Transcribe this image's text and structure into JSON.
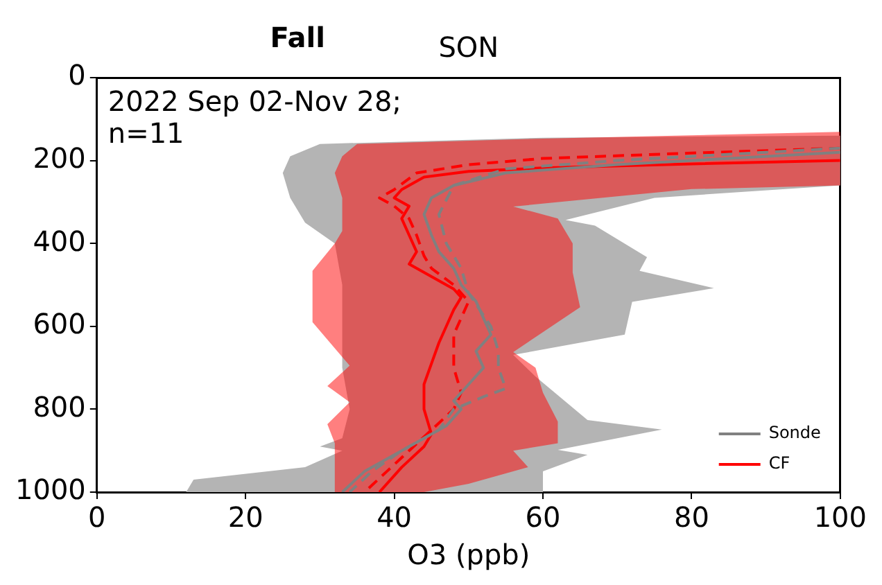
{
  "chart_data": {
    "type": "line",
    "title": "Fall",
    "subtitle": "SON",
    "xlabel": "O3 (ppb)",
    "annotations": [
      "2022 Sep 02-Nov 28;\nn=11"
    ],
    "xlim": [
      0,
      100
    ],
    "xticks": [
      0,
      20,
      40,
      60,
      80,
      100
    ],
    "ylim": [
      1000,
      0
    ],
    "yticks": [
      0,
      200,
      400,
      600,
      800,
      1000
    ],
    "grid": false,
    "legend": "bottom right",
    "marker": "none",
    "series": [
      {
        "type": "area",
        "color": "#ff0000",
        "x": [
          33,
          32,
          33,
          33,
          32,
          29,
          29,
          34,
          31,
          34,
          31,
          32,
          32,
          44,
          50,
          58,
          56,
          62,
          62,
          60,
          59,
          56,
          65,
          64,
          64,
          62,
          56,
          80,
          100,
          100,
          60,
          35,
          33
        ],
        "values": [
          190,
          230,
          290,
          370,
          400,
          466,
          590,
          695,
          744,
          783,
          836,
          882,
          1000,
          1000,
          980,
          940,
          900,
          882,
          830,
          760,
          700,
          662,
          554,
          470,
          400,
          340,
          311,
          269,
          260,
          131,
          147,
          160,
          190
        ]
      },
      {
        "type": "area",
        "color": "#b4b4b4",
        "x": [
          30,
          26,
          25,
          26,
          28,
          32,
          33,
          33,
          34,
          33,
          30,
          33,
          28,
          13,
          12,
          60,
          60,
          66,
          62,
          76,
          66,
          59,
          56,
          71,
          72,
          83,
          73,
          74,
          67,
          62,
          60,
          75,
          100,
          100,
          60,
          30
        ],
        "values": [
          160,
          190,
          230,
          290,
          350,
          400,
          500,
          700,
          800,
          870,
          890,
          900,
          940,
          970,
          1000,
          1000,
          950,
          910,
          898,
          849,
          826,
          721,
          669,
          620,
          541,
          508,
          466,
          433,
          357,
          340,
          357,
          290,
          260,
          140,
          145,
          160
        ]
      },
      {
        "name": "Sonde",
        "color": "#808080",
        "line_style": "solid",
        "x": [
          100,
          70,
          55,
          48,
          45,
          44,
          45,
          46,
          48,
          49,
          51,
          52,
          53,
          51,
          52,
          50,
          48,
          49,
          47,
          44,
          40,
          36,
          33
        ],
        "values": [
          180,
          210,
          230,
          260,
          290,
          330,
          380,
          420,
          460,
          500,
          540,
          580,
          620,
          660,
          700,
          740,
          780,
          800,
          840,
          870,
          910,
          950,
          1000
        ]
      },
      {
        "color": "#808080",
        "line_style": "dashed",
        "x": [
          100,
          70,
          55,
          48,
          46,
          47,
          49,
          50,
          53,
          54,
          54,
          55,
          52,
          48,
          46,
          41,
          37,
          34
        ],
        "values": [
          170,
          200,
          220,
          260,
          330,
          400,
          460,
          520,
          600,
          660,
          700,
          750,
          770,
          800,
          850,
          900,
          950,
          1000
        ]
      },
      {
        "name": "CF",
        "color": "#ff0000",
        "line_style": "solid",
        "x": [
          100,
          80,
          60,
          50,
          44,
          41,
          40,
          42,
          41,
          42,
          43,
          42,
          44,
          48,
          49,
          48,
          47,
          46,
          45,
          44,
          44,
          45,
          44,
          41,
          38
        ],
        "values": [
          200,
          208,
          218,
          226,
          240,
          270,
          290,
          310,
          340,
          380,
          420,
          450,
          470,
          510,
          530,
          560,
          600,
          640,
          690,
          740,
          800,
          860,
          890,
          940,
          1000
        ]
      },
      {
        "color": "#ff0000",
        "line_style": "dashed",
        "x": [
          100,
          80,
          60,
          50,
          43,
          40,
          38,
          40,
          42,
          43,
          44,
          45,
          48,
          50,
          49,
          48,
          48,
          48,
          49,
          48,
          45,
          42,
          39,
          36
        ],
        "values": [
          170,
          182,
          195,
          210,
          230,
          270,
          290,
          310,
          340,
          380,
          430,
          460,
          500,
          540,
          580,
          620,
          660,
          700,
          760,
          800,
          850,
          900,
          950,
          1000
        ]
      }
    ]
  }
}
